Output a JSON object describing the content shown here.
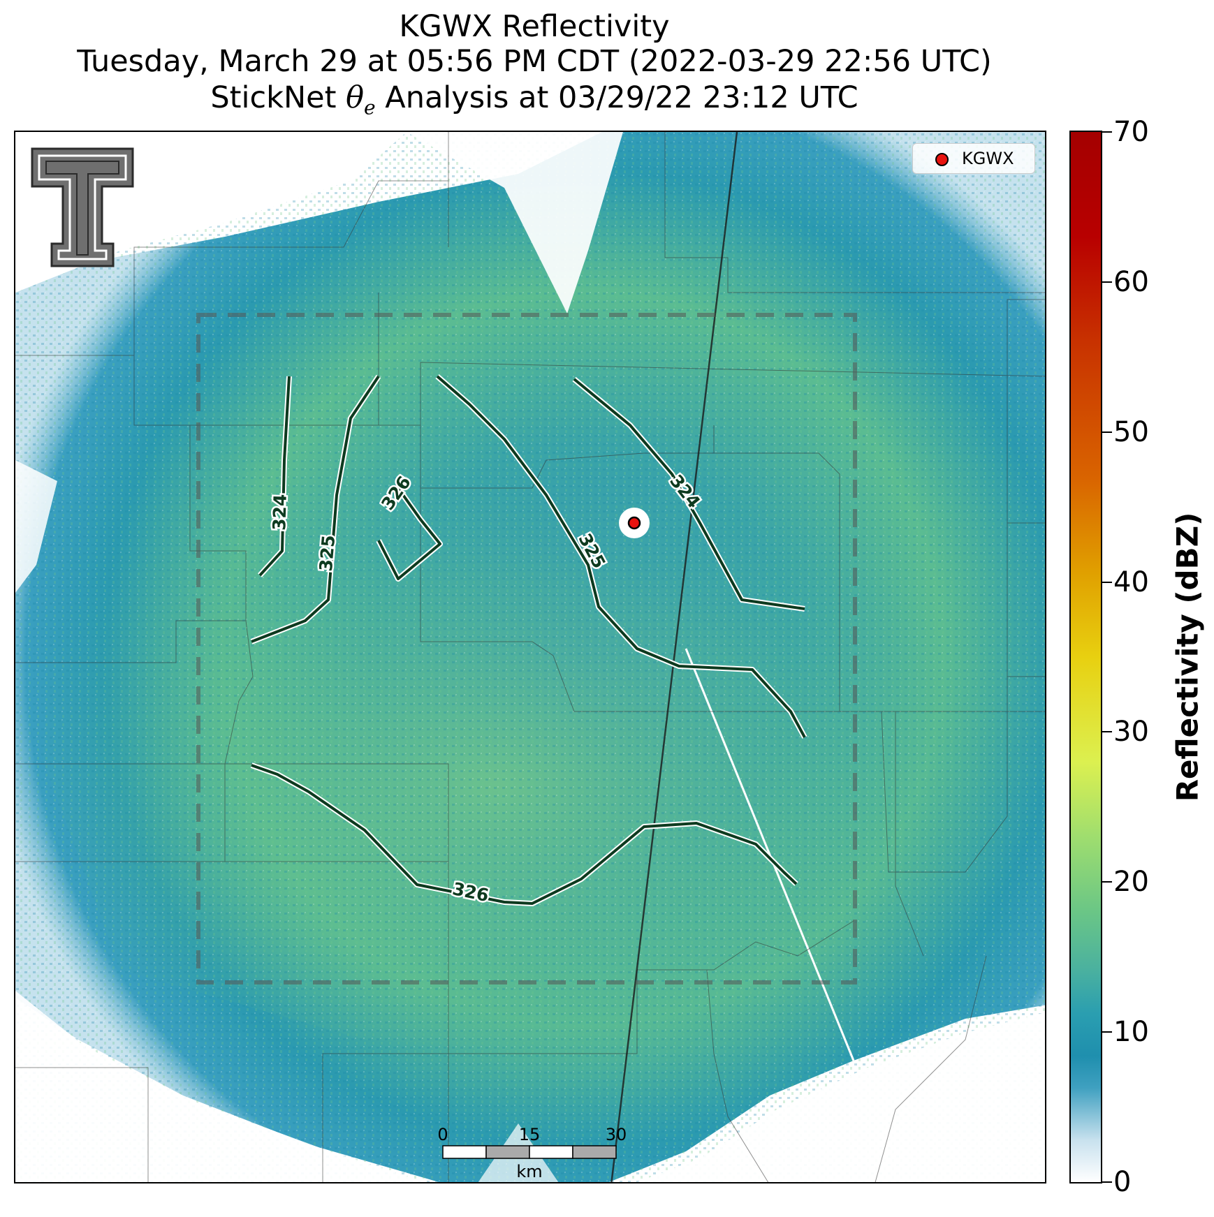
{
  "title": {
    "line1": "KGWX Reflectivity",
    "line2": "Tuesday, March 29 at 05:56 PM CDT (2022-03-29 22:56 UTC)",
    "line3_prefix": "StickNet ",
    "line3_theta": "θ",
    "line3_sub": "e",
    "line3_suffix": " Analysis at 03/29/22 23:12 UTC"
  },
  "legend": {
    "label": "KGWX",
    "marker_color": "#e8130f"
  },
  "colorbar": {
    "label": "Reflectivity (dBZ)",
    "ticks": [
      "0",
      "10",
      "20",
      "30",
      "40",
      "50",
      "60",
      "70"
    ],
    "range": [
      0,
      70
    ]
  },
  "contours": {
    "color": "#0d3a1f",
    "labels": [
      "324",
      "324",
      "325",
      "325",
      "326",
      "326"
    ]
  },
  "scalebar": {
    "ticks": [
      "0",
      "15",
      "30"
    ],
    "unit": "km"
  },
  "colors": {
    "radar_low": "#1f8fae",
    "radar_mid": "#4fb39a",
    "radar_high": "#8fd27a"
  }
}
